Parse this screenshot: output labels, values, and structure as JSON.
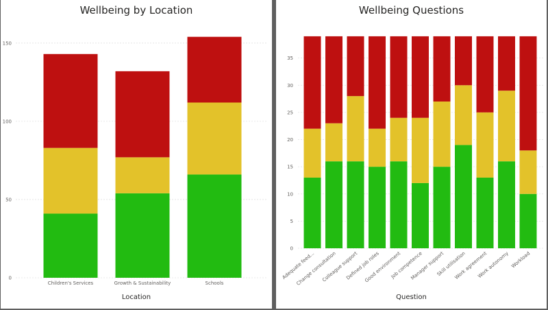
{
  "colors": {
    "green": "#22bb11",
    "yellow": "#e3c22a",
    "red": "#be1010"
  },
  "chart_data": [
    {
      "type": "bar",
      "stacked": true,
      "title": "Wellbeing by Location",
      "xlabel": "Location",
      "ylabel": "",
      "ylim": [
        0,
        160
      ],
      "yticks": [
        0,
        50,
        100,
        150
      ],
      "grid": true,
      "categories": [
        "Children's Services",
        "Growth & Sustainability",
        "Schools"
      ],
      "series": [
        {
          "color": "#22bb11",
          "values": [
            41,
            54,
            66
          ]
        },
        {
          "color": "#e3c22a",
          "values": [
            42,
            23,
            46
          ]
        },
        {
          "color": "#be1010",
          "values": [
            60,
            55,
            42
          ]
        }
      ]
    },
    {
      "type": "bar",
      "stacked": true,
      "title": "Wellbeing Questions",
      "xlabel": "Question",
      "ylabel": "",
      "ylim": [
        0,
        40
      ],
      "yticks": [
        0,
        5,
        10,
        15,
        20,
        25,
        30,
        35
      ],
      "grid": true,
      "categories": [
        "Adequate feed...",
        "Change consultation",
        "Colleague support",
        "Defined job roles",
        "Good environment",
        "Job competence",
        "Manager support",
        "Skill utilisation",
        "Work agreement",
        "Work autonomy",
        "Workload"
      ],
      "series": [
        {
          "color": "#22bb11",
          "values": [
            13,
            16,
            16,
            15,
            16,
            12,
            15,
            19,
            13,
            16,
            10
          ]
        },
        {
          "color": "#e3c22a",
          "values": [
            9,
            7,
            12,
            7,
            8,
            12,
            12,
            11,
            12,
            13,
            8
          ]
        },
        {
          "color": "#be1010",
          "values": [
            17,
            16,
            11,
            17,
            15,
            15,
            12,
            9,
            14,
            10,
            21
          ]
        }
      ]
    }
  ]
}
